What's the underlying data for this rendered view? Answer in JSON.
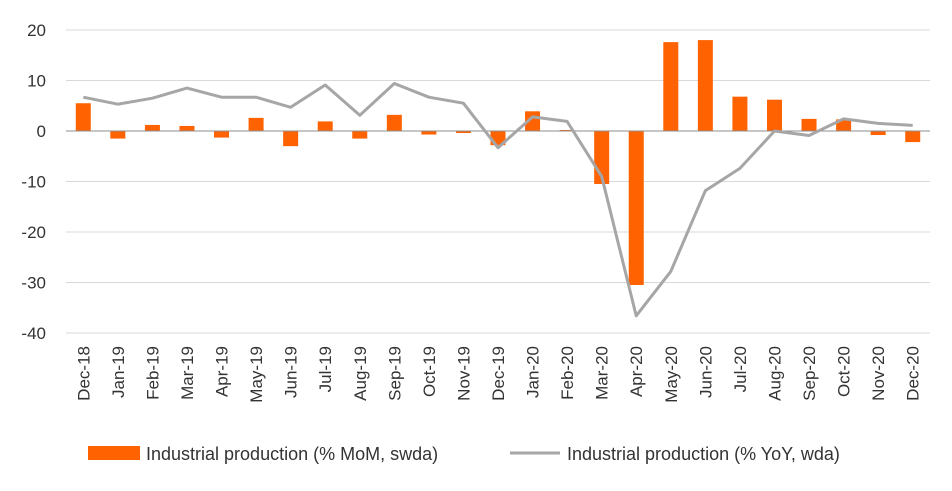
{
  "chart_data": {
    "type": "bar",
    "categories": [
      "Dec-18",
      "Jan-19",
      "Feb-19",
      "Mar-19",
      "Apr-19",
      "May-19",
      "Jun-19",
      "Jul-19",
      "Aug-19",
      "Sep-19",
      "Oct-19",
      "Nov-19",
      "Dec-19",
      "Jan-20",
      "Feb-20",
      "Mar-20",
      "Apr-20",
      "May-20",
      "Jun-20",
      "Jul-20",
      "Aug-20",
      "Sep-20",
      "Oct-20",
      "Nov-20",
      "Dec-20"
    ],
    "series": [
      {
        "name": "Industrial production (% MoM, swda)",
        "type": "bar",
        "color": "#ff6200",
        "values": [
          5.5,
          -1.5,
          1.2,
          1.0,
          -1.3,
          2.6,
          -3.0,
          1.9,
          -1.5,
          3.2,
          -0.7,
          -0.4,
          -2.8,
          3.9,
          0.2,
          -10.5,
          -30.5,
          17.6,
          18.0,
          6.8,
          6.2,
          2.4,
          2.3,
          -0.8,
          -2.2
        ]
      },
      {
        "name": "Industrial production (% YoY, wda)",
        "type": "line",
        "color": "#a6a6a6",
        "values": [
          6.7,
          5.3,
          6.5,
          8.5,
          6.7,
          6.7,
          4.7,
          9.1,
          3.1,
          9.4,
          6.7,
          5.5,
          -3.3,
          2.8,
          1.9,
          -9.0,
          -36.6,
          -27.8,
          -11.8,
          -7.4,
          0.0,
          -0.9,
          2.4,
          1.5,
          1.1
        ]
      }
    ],
    "yticks": [
      20,
      10,
      0,
      -10,
      -20,
      -30,
      -40
    ],
    "ylim": [
      -40,
      20
    ],
    "grid": true,
    "legend": "bottom"
  }
}
